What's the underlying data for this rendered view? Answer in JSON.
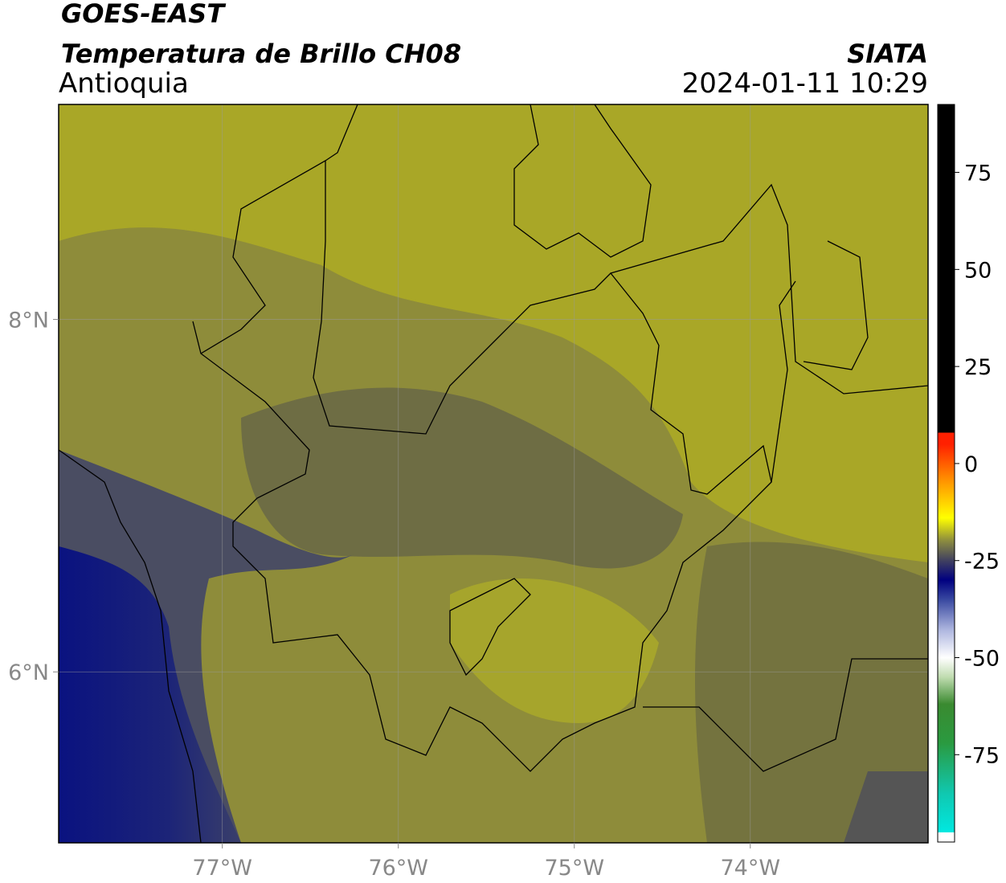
{
  "header": {
    "satellite": "GOES-EAST",
    "product": "Temperatura de Brillo CH08",
    "region": "Antioquia",
    "source": "SIATA",
    "datetime": "2024-01-11 10:29"
  },
  "map": {
    "xlim": [
      -77.93,
      -72.99
    ],
    "ylim": [
      5.03,
      9.22
    ],
    "xticks": [
      {
        "value": -77,
        "label": "77°W"
      },
      {
        "value": -76,
        "label": "76°W"
      },
      {
        "value": -75,
        "label": "75°W"
      },
      {
        "value": -74,
        "label": "74°W"
      }
    ],
    "yticks": [
      {
        "value": 8,
        "label": "8°N"
      },
      {
        "value": 6,
        "label": "6°N"
      }
    ],
    "grid": true
  },
  "colorbar": {
    "clim": [
      -97.5,
      92.5
    ],
    "ticks": [
      75,
      50,
      25,
      0,
      -25,
      -50,
      -75
    ],
    "colormap": [
      {
        "value": -97.5,
        "color": "#ffffff"
      },
      {
        "value": -95,
        "color": "#ffffff"
      },
      {
        "value": -95,
        "color": "#00e8e0"
      },
      {
        "value": -85,
        "color": "#10c8b0"
      },
      {
        "value": -72,
        "color": "#2a9a40"
      },
      {
        "value": -62,
        "color": "#3a8a30"
      },
      {
        "value": -55,
        "color": "#c0dcb0"
      },
      {
        "value": -50,
        "color": "#ffffff"
      },
      {
        "value": -43,
        "color": "#b0b8e0"
      },
      {
        "value": -35,
        "color": "#3848a0"
      },
      {
        "value": -30,
        "color": "#000080"
      },
      {
        "value": -25,
        "color": "#404060"
      },
      {
        "value": -20,
        "color": "#8a8a40"
      },
      {
        "value": -14,
        "color": "#ffff00"
      },
      {
        "value": -5,
        "color": "#ff9a00"
      },
      {
        "value": 5,
        "color": "#ff2000"
      },
      {
        "value": 8,
        "color": "#ff2000"
      },
      {
        "value": 8,
        "color": "#000000"
      },
      {
        "value": 92.5,
        "color": "#000000"
      }
    ]
  }
}
